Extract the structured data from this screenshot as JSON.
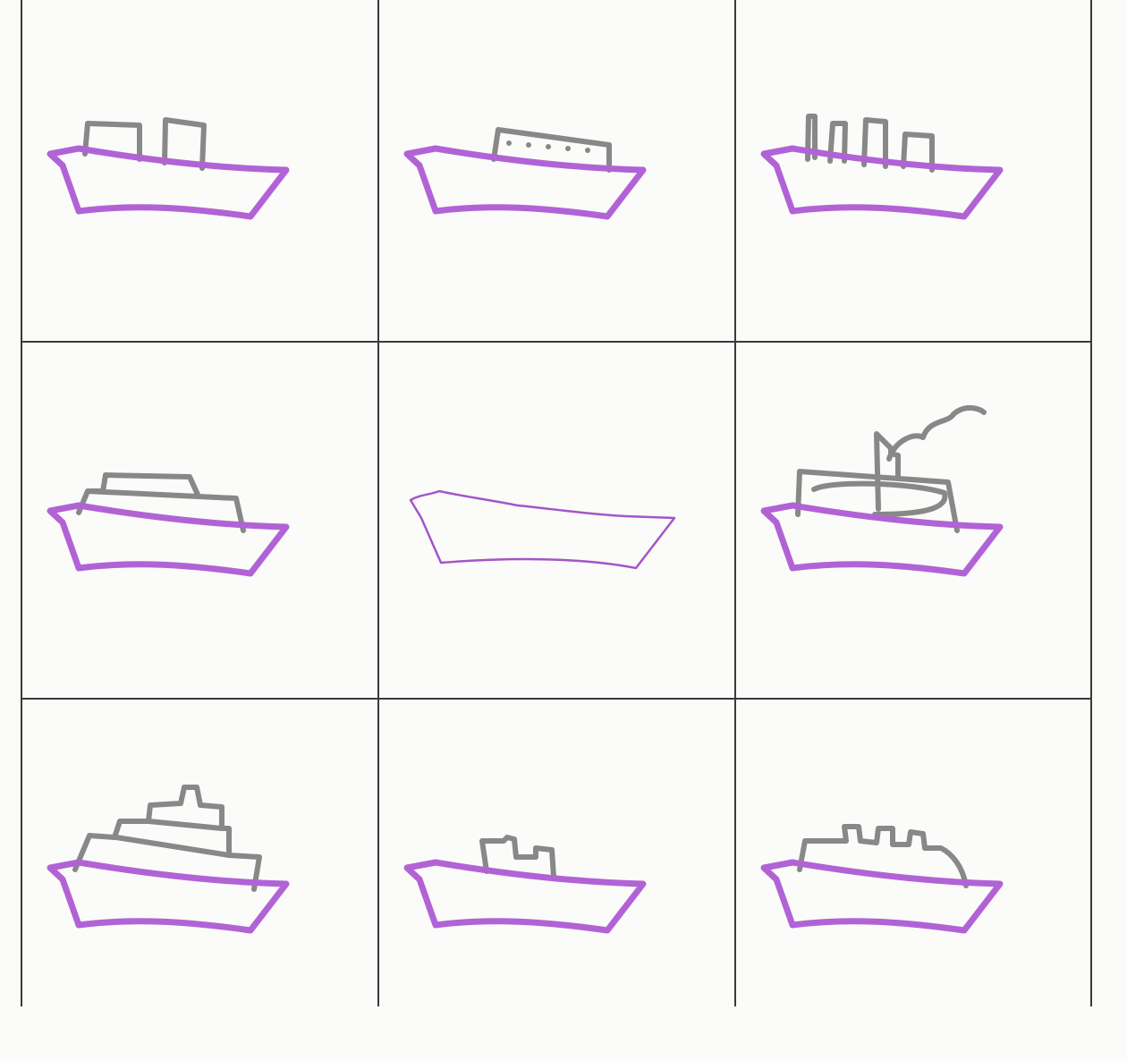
{
  "colors": {
    "background": "#fbfbf9",
    "grid_line": "#3a3a3a",
    "hull": "#b163d6",
    "hull_thin": "#a256c9",
    "superstructure": "#888888"
  },
  "grid": {
    "rows": 3,
    "cols": 3
  },
  "cells": [
    {
      "row": 0,
      "col": 0,
      "variant": "two-funnels"
    },
    {
      "row": 0,
      "col": 1,
      "variant": "cabin-with-portholes"
    },
    {
      "row": 0,
      "col": 2,
      "variant": "four-funnels"
    },
    {
      "row": 1,
      "col": 0,
      "variant": "two-tier-cabin"
    },
    {
      "row": 1,
      "col": 1,
      "variant": "hull-only-thin-outline"
    },
    {
      "row": 1,
      "col": 2,
      "variant": "steamboat-smoke"
    },
    {
      "row": 2,
      "col": 0,
      "variant": "tiered-cruise-ship"
    },
    {
      "row": 2,
      "col": 1,
      "variant": "small-tug-cabin"
    },
    {
      "row": 2,
      "col": 2,
      "variant": "ferry-three-funnels"
    }
  ]
}
